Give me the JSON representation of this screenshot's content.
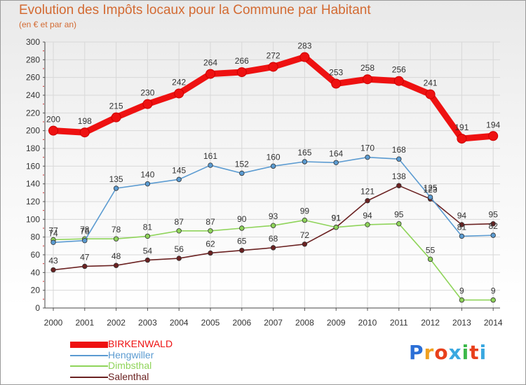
{
  "header": {
    "title": "Evolution des Impôts locaux pour la Commune par Habitant",
    "subtitle": "(en € et par an)"
  },
  "logo": {
    "text": "Proxiti",
    "colors": [
      "#2b6fd6",
      "#f0a020",
      "#e8401c",
      "#3aa8e0",
      "#3cb84a",
      "#e8401c",
      "#3aa8e0"
    ]
  },
  "chart_data": {
    "type": "line",
    "title": "Evolution des Impôts locaux pour la Commune par Habitant",
    "subtitle": "(en € et par an)",
    "x": [
      "2000",
      "2001",
      "2002",
      "2003",
      "2004",
      "2005",
      "2006",
      "2007",
      "2008",
      "2009",
      "2010",
      "2011",
      "2012",
      "2013",
      "2014"
    ],
    "ylim": [
      0,
      300
    ],
    "yticks": [
      0,
      20,
      40,
      60,
      80,
      100,
      120,
      140,
      160,
      180,
      200,
      220,
      240,
      260,
      280,
      300
    ],
    "grid": true,
    "legend": "bottom-left",
    "series": [
      {
        "name": "BIRKENWALD",
        "color": "#ee1111",
        "values": [
          200,
          198,
          215,
          230,
          242,
          264,
          266,
          272,
          283,
          253,
          258,
          256,
          241,
          191,
          194
        ]
      },
      {
        "name": "Hengwiller",
        "color": "#5b9bd1",
        "values": [
          74,
          76,
          135,
          140,
          145,
          161,
          152,
          160,
          165,
          164,
          170,
          168,
          125,
          81,
          82
        ]
      },
      {
        "name": "Dimbsthal",
        "color": "#8fd45a",
        "values": [
          77,
          78,
          78,
          81,
          87,
          87,
          90,
          93,
          99,
          91,
          94,
          95,
          55,
          9,
          9
        ]
      },
      {
        "name": "Salenthal",
        "color": "#6b2222",
        "values": [
          43,
          47,
          48,
          54,
          56,
          62,
          65,
          68,
          72,
          91,
          121,
          138,
          123,
          94,
          95
        ]
      }
    ]
  }
}
